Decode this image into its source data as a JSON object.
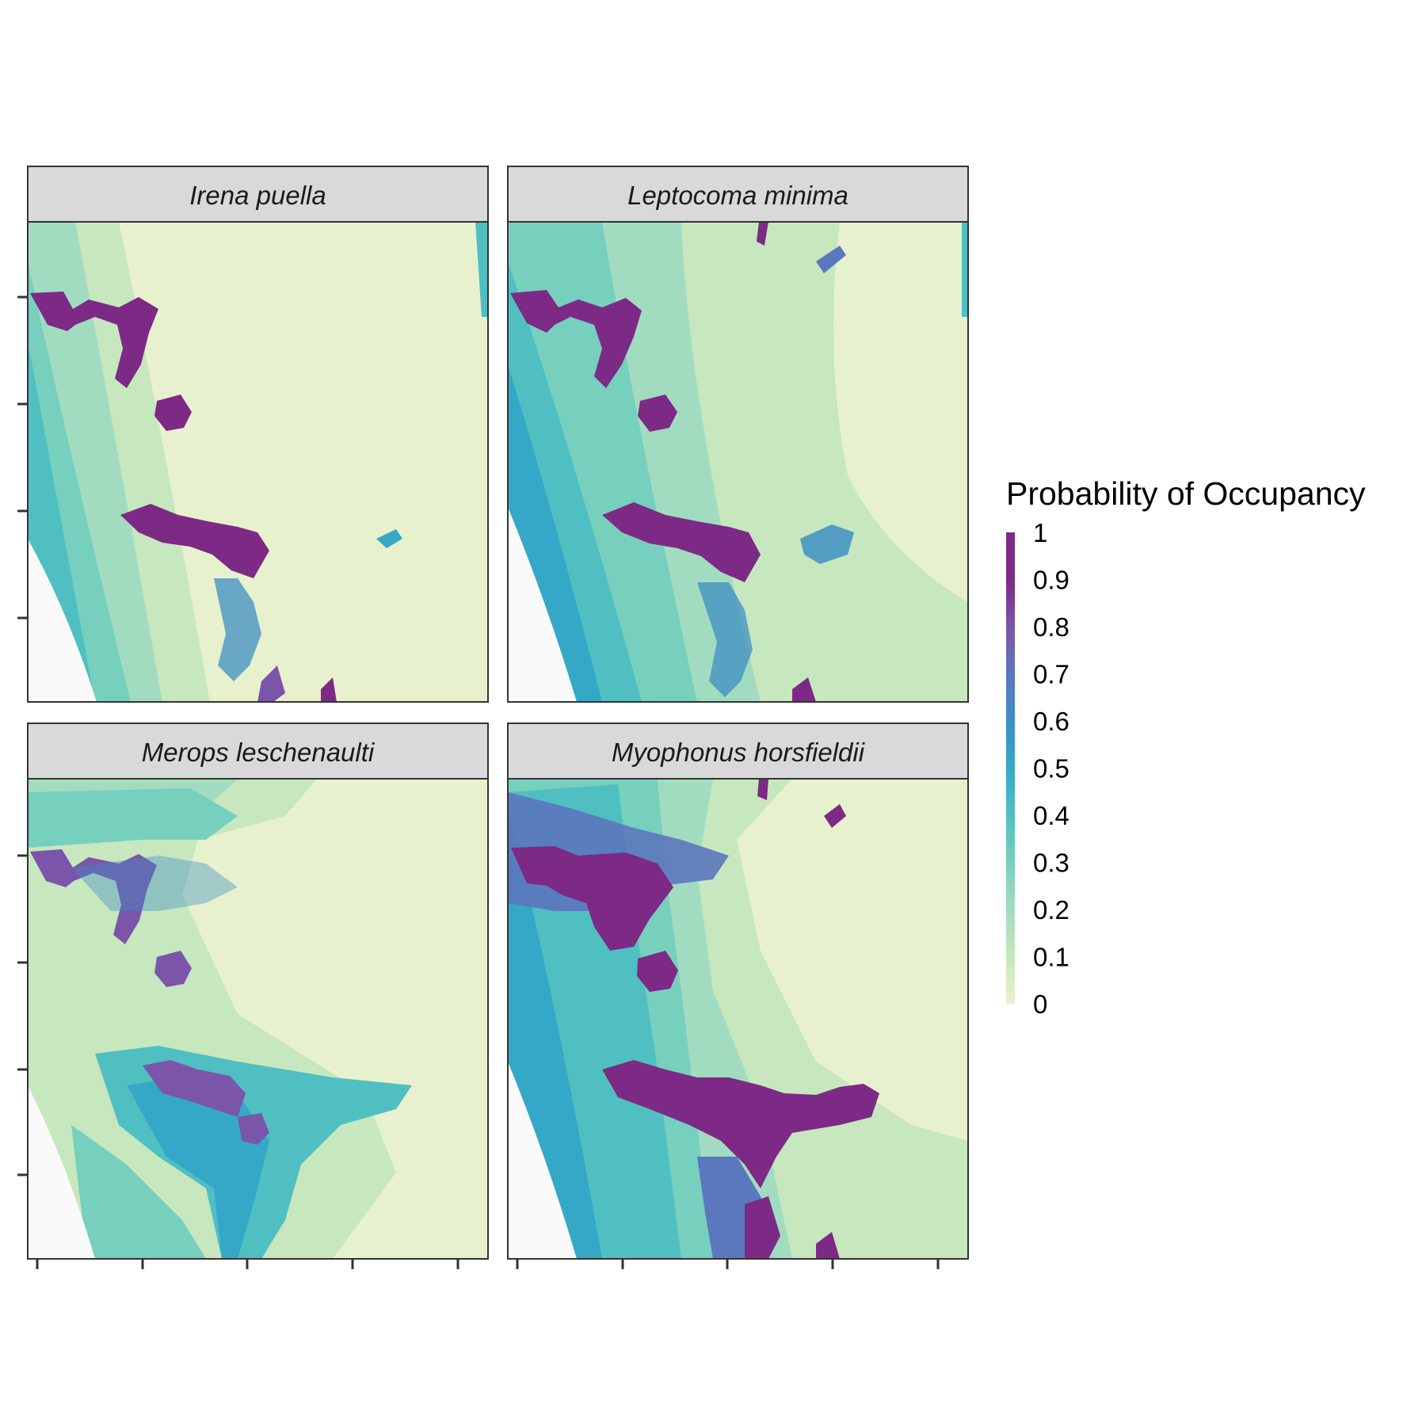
{
  "legend": {
    "title": "Probability of Occupancy",
    "labels": [
      "1",
      "0.9",
      "0.8",
      "0.7",
      "0.6",
      "0.5",
      "0.4",
      "0.3",
      "0.2",
      "0.1",
      "0"
    ],
    "colors": [
      "#e8f1cd",
      "#c7e7bf",
      "#a2dcc0",
      "#77cfbe",
      "#50bfc2",
      "#35a8c7",
      "#3e8fc3",
      "#5b77bd",
      "#7b55aa",
      "#7c2a85"
    ]
  },
  "panels": [
    {
      "title": "Irena puella",
      "species_index": 0
    },
    {
      "title": "Leptocoma minima",
      "species_index": 1
    },
    {
      "title": "Merops leschenaulti",
      "species_index": 2
    },
    {
      "title": "Myophonus horsfieldii",
      "species_index": 3
    }
  ],
  "colors": {
    "strip_fill": "#d9d9d9",
    "border": "#333333",
    "no_data": "#fafafa"
  }
}
